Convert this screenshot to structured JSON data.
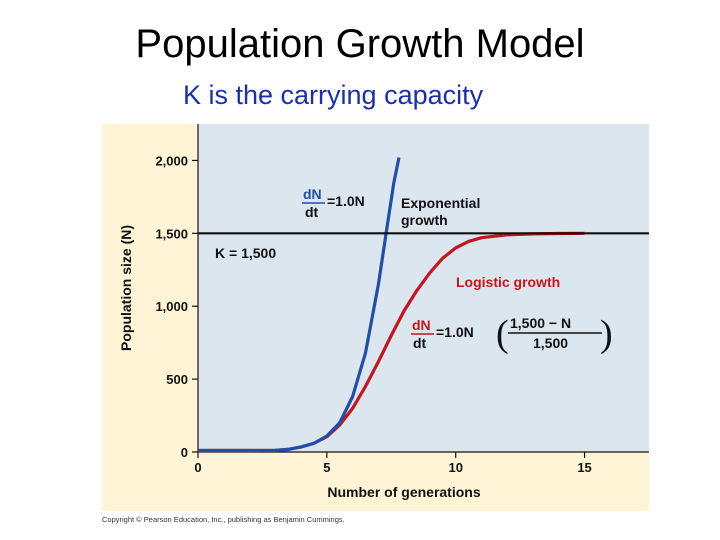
{
  "slide": {
    "title": "Population Growth Model",
    "subtitle": "K is the carrying capacity",
    "copyright": "Copyright © Pearson Education, Inc., publishing as Benjamin Cummings."
  },
  "colors": {
    "exponential": "#1f4fa8",
    "logistic": "#c4161c",
    "capacity": "#111111",
    "subtitle": "#1a2fb0"
  },
  "chart_data": {
    "type": "line",
    "xlabel": "Number of generations",
    "ylabel": "Population size (N)",
    "xlim": [
      0,
      17.5
    ],
    "ylim": [
      0,
      2250
    ],
    "x_ticks": [
      0,
      5,
      10,
      15
    ],
    "x_tick_labels": [
      "0",
      "5",
      "10",
      "15"
    ],
    "y_ticks": [
      0,
      500,
      1000,
      1500,
      2000
    ],
    "y_tick_labels": [
      "0",
      "500",
      "1,000",
      "1,500",
      "2,000"
    ],
    "carrying_capacity": {
      "value": 1500,
      "label": "K = 1,500"
    },
    "series": [
      {
        "name": "Exponential growth",
        "label_lines": [
          "Exponential",
          "growth"
        ],
        "equation": {
          "numerator": "dN",
          "denominator": "dt",
          "rhs": "=1.0N"
        },
        "x": [
          0,
          2,
          3,
          3.5,
          4,
          4.5,
          5,
          5.5,
          6,
          6.5,
          7,
          7.3,
          7.6,
          7.8
        ],
        "y": [
          10,
          10,
          12,
          18,
          35,
          60,
          110,
          200,
          380,
          680,
          1150,
          1500,
          1850,
          2020
        ]
      },
      {
        "name": "Logistic growth",
        "label_lines": [
          "Logistic growth"
        ],
        "equation": {
          "numerator": "dN",
          "denominator": "dt",
          "rhs": "=1.0N",
          "factor_numerator": "1,500 − N",
          "factor_denominator": "1,500"
        },
        "x": [
          0,
          2,
          3,
          3.5,
          4,
          4.5,
          5,
          5.5,
          6,
          6.5,
          7,
          7.5,
          8,
          8.5,
          9,
          9.5,
          10,
          10.5,
          11,
          12,
          13,
          14,
          15
        ],
        "y": [
          10,
          10,
          12,
          18,
          35,
          60,
          105,
          185,
          300,
          450,
          620,
          800,
          970,
          1110,
          1230,
          1330,
          1400,
          1445,
          1470,
          1490,
          1496,
          1499,
          1500
        ]
      }
    ]
  }
}
